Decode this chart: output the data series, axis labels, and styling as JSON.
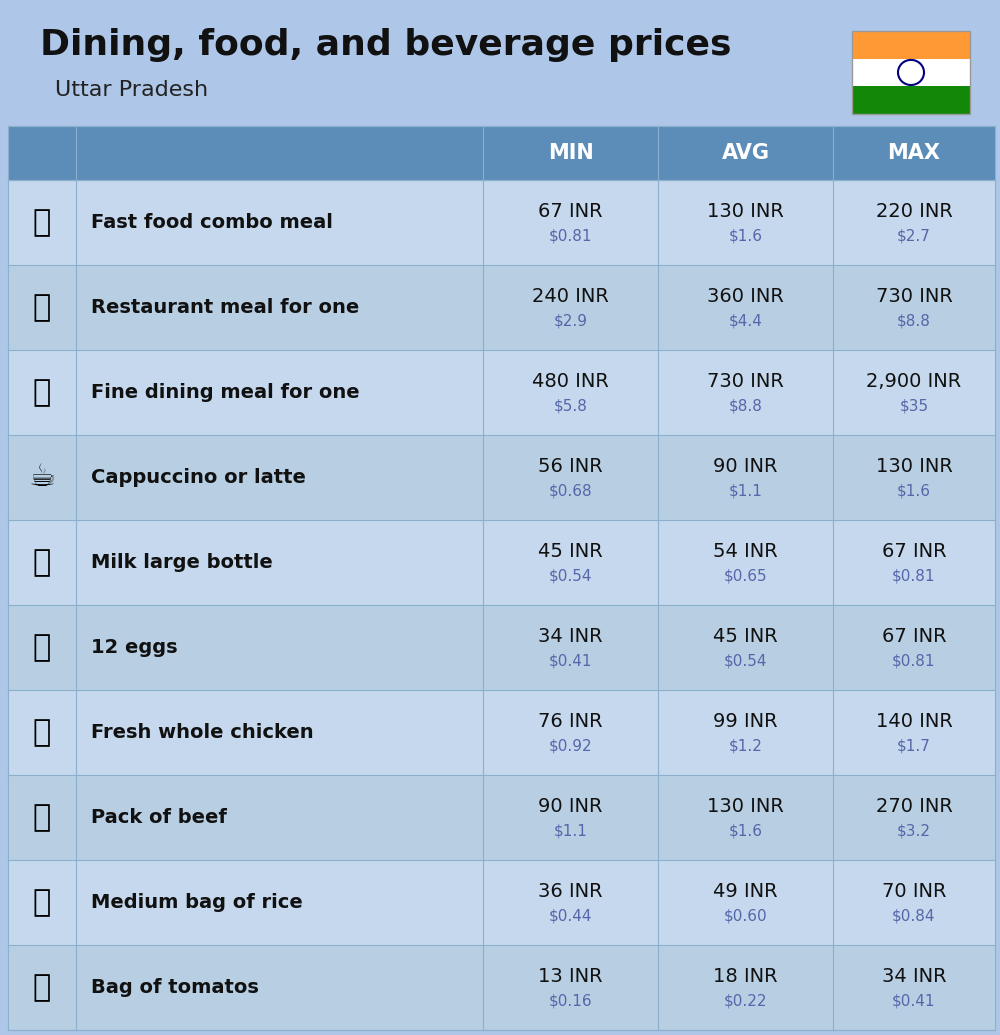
{
  "title": "Dining, food, and beverage prices",
  "subtitle": "Uttar Pradesh",
  "bg_color": "#aec6e8",
  "header_bg": "#5b8db8",
  "header_text_color": "#ffffff",
  "row_bg_light": "#c5d8ed",
  "row_bg_dark": "#b8cfe3",
  "header_labels": [
    "MIN",
    "AVG",
    "MAX"
  ],
  "rows": [
    {
      "name": "Fast food combo meal",
      "emoji": "🍔",
      "min_inr": "67 INR",
      "min_usd": "$0.81",
      "avg_inr": "130 INR",
      "avg_usd": "$1.6",
      "max_inr": "220 INR",
      "max_usd": "$2.7"
    },
    {
      "name": "Restaurant meal for one",
      "emoji": "🍳",
      "min_inr": "240 INR",
      "min_usd": "$2.9",
      "avg_inr": "360 INR",
      "avg_usd": "$4.4",
      "max_inr": "730 INR",
      "max_usd": "$8.8"
    },
    {
      "name": "Fine dining meal for one",
      "emoji": "🍽️",
      "min_inr": "480 INR",
      "min_usd": "$5.8",
      "avg_inr": "730 INR",
      "avg_usd": "$8.8",
      "max_inr": "2,900 INR",
      "max_usd": "$35"
    },
    {
      "name": "Cappuccino or latte",
      "emoji": "☕",
      "min_inr": "56 INR",
      "min_usd": "$0.68",
      "avg_inr": "90 INR",
      "avg_usd": "$1.1",
      "max_inr": "130 INR",
      "max_usd": "$1.6"
    },
    {
      "name": "Milk large bottle",
      "emoji": "🥛",
      "min_inr": "45 INR",
      "min_usd": "$0.54",
      "avg_inr": "54 INR",
      "avg_usd": "$0.65",
      "max_inr": "67 INR",
      "max_usd": "$0.81"
    },
    {
      "name": "12 eggs",
      "emoji": "🥚",
      "min_inr": "34 INR",
      "min_usd": "$0.41",
      "avg_inr": "45 INR",
      "avg_usd": "$0.54",
      "max_inr": "67 INR",
      "max_usd": "$0.81"
    },
    {
      "name": "Fresh whole chicken",
      "emoji": "🐔",
      "min_inr": "76 INR",
      "min_usd": "$0.92",
      "avg_inr": "99 INR",
      "avg_usd": "$1.2",
      "max_inr": "140 INR",
      "max_usd": "$1.7"
    },
    {
      "name": "Pack of beef",
      "emoji": "🥩",
      "min_inr": "90 INR",
      "min_usd": "$1.1",
      "avg_inr": "130 INR",
      "avg_usd": "$1.6",
      "max_inr": "270 INR",
      "max_usd": "$3.2"
    },
    {
      "name": "Medium bag of rice",
      "emoji": "🍚",
      "min_inr": "36 INR",
      "min_usd": "$0.44",
      "avg_inr": "49 INR",
      "avg_usd": "$0.60",
      "max_inr": "70 INR",
      "max_usd": "$0.84"
    },
    {
      "name": "Bag of tomatos",
      "emoji": "🍅",
      "min_inr": "13 INR",
      "min_usd": "$0.16",
      "avg_inr": "18 INR",
      "avg_usd": "$0.22",
      "max_inr": "34 INR",
      "max_usd": "$0.41"
    }
  ],
  "india_flag_colors": [
    "#FF9933",
    "#FFFFFF",
    "#138808"
  ],
  "line_color": "#8ab0cc",
  "line_width": 0.8
}
